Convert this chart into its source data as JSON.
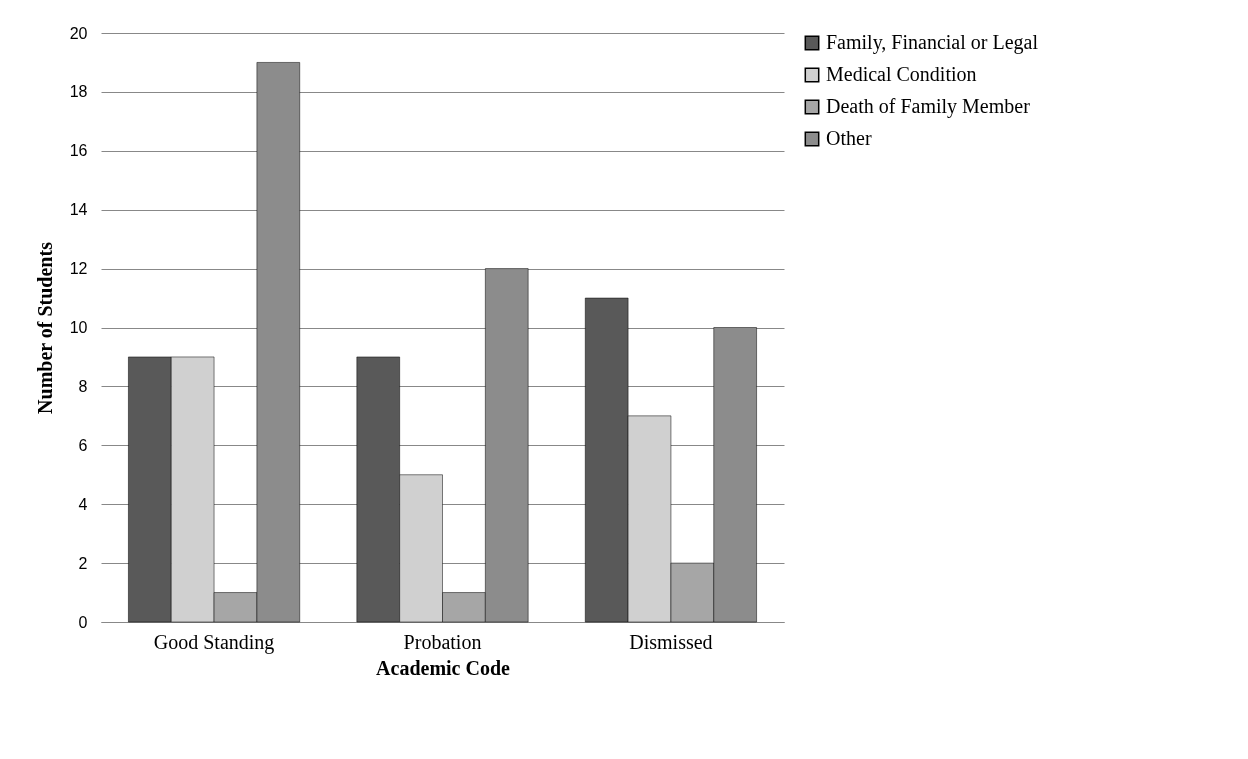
{
  "chart_data": {
    "type": "bar",
    "xlabel": "Academic Code",
    "ylabel": "Number of Students",
    "categories": [
      "Good Standing",
      "Probation",
      "Dismissed"
    ],
    "series": [
      {
        "name": "Family, Financial or Legal",
        "color": "#595959",
        "values": [
          9,
          9,
          11
        ]
      },
      {
        "name": "Medical Condition",
        "color": "#d0d0d0",
        "values": [
          9,
          5,
          7
        ]
      },
      {
        "name": "Death of Family Member",
        "color": "#a6a6a6",
        "values": [
          1,
          1,
          2
        ]
      },
      {
        "name": "Other",
        "color": "#8c8c8c",
        "values": [
          19,
          12,
          10
        ]
      }
    ],
    "ylim": [
      0,
      20
    ],
    "yticks": [
      0,
      2,
      4,
      6,
      8,
      10,
      12,
      14,
      16,
      18,
      20
    ],
    "grid": "y",
    "legend": "right"
  }
}
